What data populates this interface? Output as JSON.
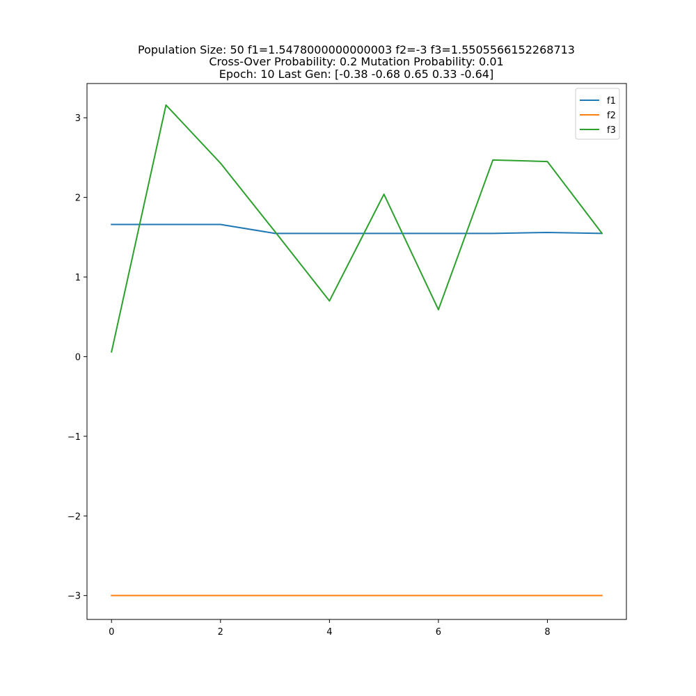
{
  "chart_data": {
    "type": "line",
    "title_lines": [
      "Population Size: 50 f1=1.5478000000000003 f2=-3 f3=1.5505566152268713",
      "Cross-Over Probability: 0.2 Mutation Probability: 0.01",
      "Epoch: 10 Last Gen: [-0.38 -0.68  0.65  0.33 -0.64]"
    ],
    "xlabel": "",
    "ylabel": "",
    "x": [
      0,
      1,
      2,
      3,
      4,
      5,
      6,
      7,
      8,
      9
    ],
    "xlim": [
      -0.45,
      9.45
    ],
    "ylim": [
      -3.3,
      3.43
    ],
    "xticks": [
      0,
      2,
      4,
      6,
      8
    ],
    "xtick_labels": [
      "0",
      "2",
      "4",
      "6",
      "8"
    ],
    "yticks": [
      -3,
      -2,
      -1,
      0,
      1,
      2,
      3
    ],
    "ytick_labels": [
      "−3",
      "−2",
      "−1",
      "0",
      "1",
      "2",
      "3"
    ],
    "grid": false,
    "legend_position": "top-right",
    "series": [
      {
        "name": "f1",
        "color": "#1f77b4",
        "values": [
          1.66,
          1.66,
          1.66,
          1.548,
          1.548,
          1.548,
          1.548,
          1.548,
          1.56,
          1.548
        ]
      },
      {
        "name": "f2",
        "color": "#ff7f0e",
        "values": [
          -3,
          -3,
          -3,
          -3,
          -3,
          -3,
          -3,
          -3,
          -3,
          -3
        ]
      },
      {
        "name": "f3",
        "color": "#2ca02c",
        "values": [
          0.06,
          3.16,
          2.43,
          1.57,
          0.7,
          2.04,
          0.59,
          2.47,
          2.45,
          1.55
        ]
      }
    ]
  }
}
